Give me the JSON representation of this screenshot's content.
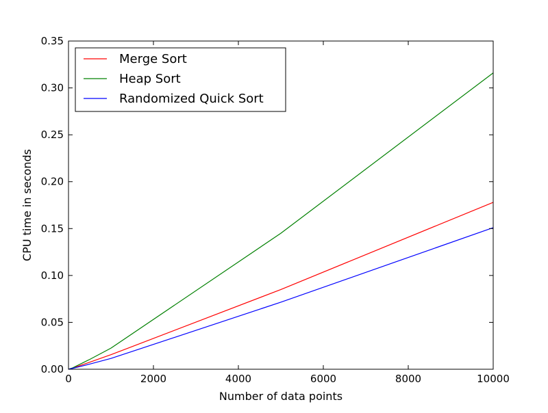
{
  "chart_data": {
    "type": "line",
    "title": "",
    "xlabel": "Number of data points",
    "ylabel": "CPU time in seconds",
    "xlim": [
      0,
      10000
    ],
    "ylim": [
      0,
      0.35
    ],
    "xticks": [
      0,
      2000,
      4000,
      6000,
      8000,
      10000
    ],
    "xtick_labels": [
      "0",
      "2000",
      "4000",
      "6000",
      "8000",
      "10000"
    ],
    "yticks": [
      0.0,
      0.05,
      0.1,
      0.15,
      0.2,
      0.25,
      0.3,
      0.35
    ],
    "ytick_labels": [
      "0.00",
      "0.05",
      "0.10",
      "0.15",
      "0.20",
      "0.25",
      "0.30",
      "0.35"
    ],
    "grid": false,
    "legend_position": "top-left",
    "x": [
      0,
      100,
      500,
      1000,
      5000,
      10000
    ],
    "series": [
      {
        "name": "Merge Sort",
        "color": "#ff0000",
        "values": [
          0.0,
          0.0012,
          0.0075,
          0.0155,
          0.085,
          0.178
        ]
      },
      {
        "name": "Heap Sort",
        "color": "#008000",
        "values": [
          0.0,
          0.0015,
          0.0105,
          0.0225,
          0.145,
          0.316
        ]
      },
      {
        "name": "Randomized Quick Sort",
        "color": "#0000ff",
        "values": [
          0.0,
          0.001,
          0.0055,
          0.0115,
          0.0715,
          0.151
        ]
      }
    ]
  }
}
